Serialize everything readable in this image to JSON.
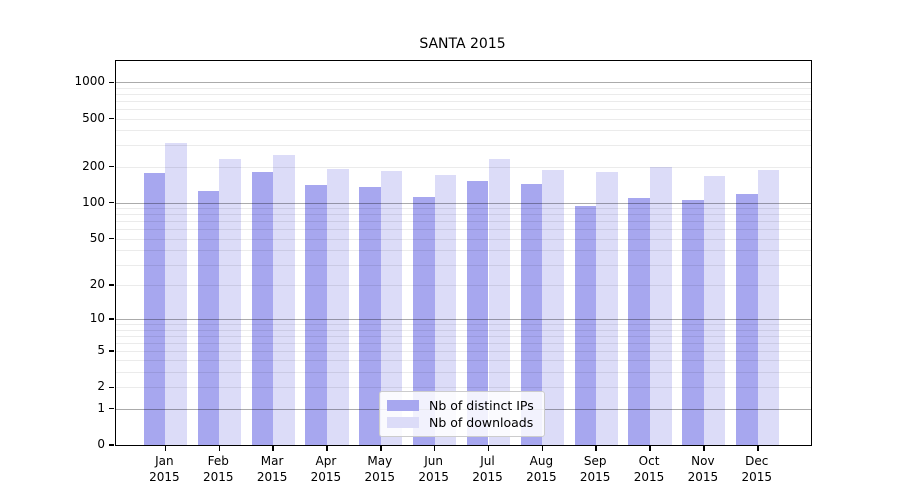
{
  "chart_data": {
    "type": "bar",
    "title": "SANTA 2015",
    "categories": [
      "Jan",
      "Feb",
      "Mar",
      "Apr",
      "May",
      "Jun",
      "Jul",
      "Aug",
      "Sep",
      "Oct",
      "Nov",
      "Dec"
    ],
    "category_year": "2015",
    "series": [
      {
        "name": "Nb of distinct IPs",
        "color": "#a7a7ef",
        "values": [
          178,
          126,
          181,
          140,
          134,
          111,
          152,
          143,
          93,
          110,
          106,
          119
        ]
      },
      {
        "name": "Nb of downloads",
        "color": "#dcdcf8",
        "values": [
          316,
          231,
          251,
          192,
          184,
          169,
          232,
          186,
          179,
          200,
          167,
          186
        ]
      }
    ],
    "xlabel": "",
    "ylabel": "",
    "yscale": "log10(value+1)",
    "ylim": [
      0,
      1500
    ],
    "ytick_labels": [
      1000,
      500,
      200,
      100,
      50,
      20,
      10,
      5,
      2,
      1,
      0
    ],
    "grid": {
      "on": true,
      "major_values": [
        1,
        10,
        100,
        1000
      ],
      "minor_bases": [
        1,
        10,
        100
      ],
      "minor_multiples": [
        2,
        3,
        4,
        5,
        6,
        7,
        8,
        9
      ]
    },
    "legend": {
      "position": "lower-center"
    },
    "colors": {
      "major_grid": "rgba(0,0,0,0.33)",
      "minor_grid": "rgba(0,0,0,0.08)",
      "spine": "#000000",
      "background": "#ffffff"
    }
  }
}
